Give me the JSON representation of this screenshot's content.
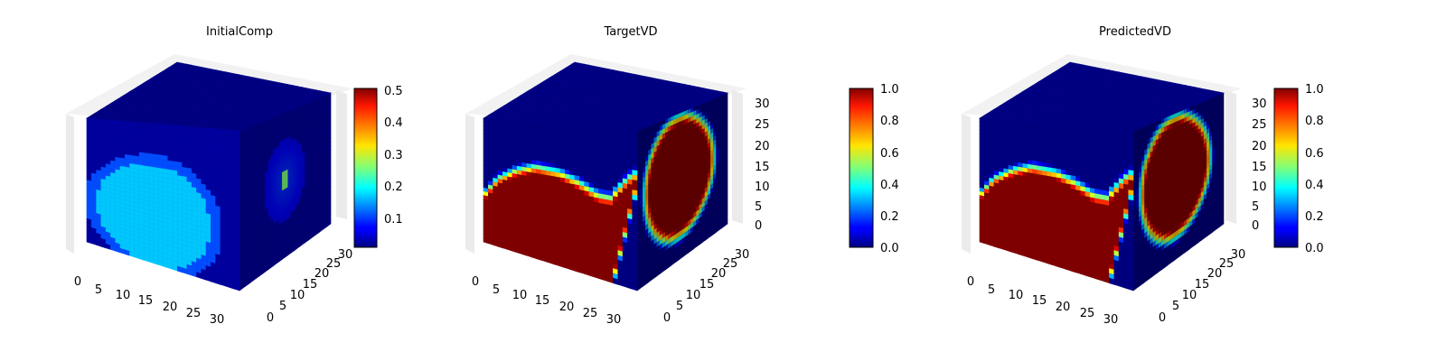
{
  "chart_data": [
    {
      "type": "heatmap",
      "subtype": "3d-voxel",
      "title": "InitialComp",
      "colormap": "jet",
      "colorbar": {
        "range": [
          0.02,
          0.5
        ],
        "ticks": [
          "0.1",
          "0.2",
          "0.3",
          "0.4",
          "0.5"
        ]
      },
      "x_axis": {
        "range": [
          0,
          32
        ],
        "ticks": [
          "0",
          "5",
          "10",
          "15",
          "20",
          "25",
          "30"
        ]
      },
      "y_axis": {
        "range": [
          0,
          32
        ],
        "ticks": [
          "0",
          "5",
          "10",
          "15",
          "20",
          "25",
          "30"
        ]
      },
      "z_axis": {
        "range": [
          0,
          32
        ],
        "ticks": []
      },
      "grid": true,
      "field": {
        "background": 0.03,
        "front_face_blob": {
          "center": [
            14,
            11
          ],
          "radius": 13,
          "value": 0.32,
          "edge_value": 0.2
        },
        "side_face_spot": {
          "center": [
            16,
            17
          ],
          "radius": 9,
          "value": 0.1,
          "peak": 0.5
        }
      }
    },
    {
      "type": "heatmap",
      "subtype": "3d-voxel",
      "title": "TargetVD",
      "colormap": "jet",
      "colorbar": {
        "range": [
          0.0,
          1.0
        ],
        "ticks": [
          "0.0",
          "0.2",
          "0.4",
          "0.6",
          "0.8",
          "1.0"
        ]
      },
      "x_axis": {
        "range": [
          0,
          32
        ],
        "ticks": [
          "0",
          "5",
          "10",
          "15",
          "20",
          "25",
          "30"
        ]
      },
      "y_axis": {
        "range": [
          0,
          32
        ],
        "ticks": [
          "0",
          "5",
          "10",
          "15",
          "20",
          "25",
          "30"
        ]
      },
      "z_axis": {
        "range": [
          0,
          32
        ],
        "ticks": [
          "0",
          "5",
          "10",
          "15",
          "20",
          "25",
          "30"
        ]
      },
      "grid": true,
      "field": {
        "background": 0.0,
        "inside_value": 1.0,
        "interface_width": 1.5
      }
    },
    {
      "type": "heatmap",
      "subtype": "3d-voxel",
      "title": "PredictedVD",
      "colormap": "jet",
      "colorbar": {
        "range": [
          0.0,
          1.0
        ],
        "ticks": [
          "0.0",
          "0.2",
          "0.4",
          "0.6",
          "0.8",
          "1.0"
        ]
      },
      "x_axis": {
        "range": [
          0,
          32
        ],
        "ticks": [
          "0",
          "5",
          "10",
          "15",
          "20",
          "25",
          "30"
        ]
      },
      "y_axis": {
        "range": [
          0,
          32
        ],
        "ticks": [
          "0",
          "5",
          "10",
          "15",
          "20",
          "25",
          "30"
        ]
      },
      "z_axis": {
        "range": [
          0,
          32
        ],
        "ticks": [
          "0",
          "5",
          "10",
          "15",
          "20",
          "25",
          "30"
        ]
      },
      "grid": true,
      "field": {
        "background": 0.0,
        "inside_value": 1.0,
        "interface_width": 1.5
      }
    }
  ]
}
